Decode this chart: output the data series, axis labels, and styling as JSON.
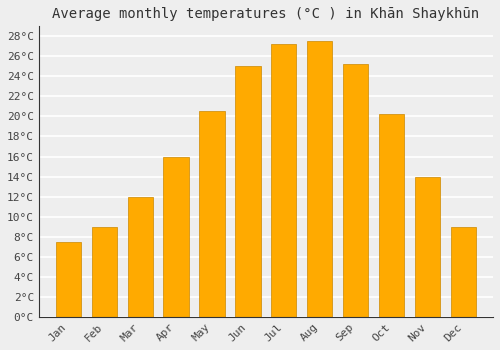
{
  "title": "Average monthly temperatures (°C ) in Khān Shaykhūn",
  "months": [
    "Jan",
    "Feb",
    "Mar",
    "Apr",
    "May",
    "Jun",
    "Jul",
    "Aug",
    "Sep",
    "Oct",
    "Nov",
    "Dec"
  ],
  "temps": [
    7.5,
    9.0,
    12.0,
    16.0,
    20.5,
    25.0,
    27.2,
    27.5,
    25.2,
    20.2,
    14.0,
    9.0
  ],
  "bar_color": "#FFAA00",
  "bar_edge_color": "#CC8800",
  "ylim": [
    0,
    29
  ],
  "ytick_values": [
    0,
    2,
    4,
    6,
    8,
    10,
    12,
    14,
    16,
    18,
    20,
    22,
    24,
    26,
    28
  ],
  "ytick_labels": [
    "0°C",
    "2°C",
    "4°C",
    "6°C",
    "8°C",
    "10°C",
    "12°C",
    "14°C",
    "16°C",
    "18°C",
    "20°C",
    "22°C",
    "24°C",
    "26°C",
    "28°C"
  ],
  "bg_color": "#eeeeee",
  "plot_bg_color": "#eeeeee",
  "grid_color": "#ffffff",
  "title_fontsize": 10,
  "tick_fontsize": 8,
  "bar_width": 0.7
}
